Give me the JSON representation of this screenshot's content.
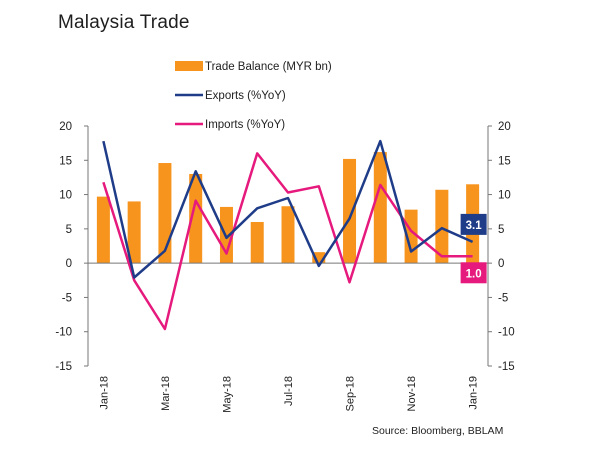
{
  "title": "Malaysia Trade",
  "source": "Source: Bloomberg, BBLAM",
  "colors": {
    "trade_balance": "#f7941d",
    "exports": "#1f3c88",
    "imports": "#e6197d"
  },
  "chart_data": {
    "type": "bar+line",
    "title": "Malaysia Trade",
    "x": [
      "Jan-18",
      "Feb-18",
      "Mar-18",
      "Apr-18",
      "May-18",
      "Jun-18",
      "Jul-18",
      "Aug-18",
      "Sep-18",
      "Oct-18",
      "Nov-18",
      "Dec-18",
      "Jan-19"
    ],
    "x_tick_labels": [
      "Jan-18",
      "",
      "Mar-18",
      "",
      "May-18",
      "",
      "Jul-18",
      "",
      "Sep-18",
      "",
      "Nov-18",
      "",
      "Jan-19"
    ],
    "y_ticks": [
      "20",
      "15",
      "10",
      "5",
      "0",
      "-5",
      "-10",
      "-15"
    ],
    "ylim": [
      -15,
      20
    ],
    "grid": false,
    "legend": "top",
    "series": [
      {
        "name": "Trade Balance (MYR bn)",
        "kind": "bar",
        "values": [
          9.7,
          9.0,
          14.6,
          13.0,
          8.2,
          6.0,
          8.3,
          1.6,
          15.2,
          16.2,
          7.8,
          10.7,
          11.5
        ]
      },
      {
        "name": "Exports (%YoY)",
        "kind": "line",
        "values": [
          17.8,
          -2.1,
          1.8,
          13.4,
          3.7,
          8.0,
          9.5,
          -0.4,
          6.5,
          17.8,
          1.7,
          5.1,
          3.1
        ]
      },
      {
        "name": "Imports (%YoY)",
        "kind": "line",
        "values": [
          11.8,
          -2.5,
          -9.6,
          9.1,
          1.4,
          16.0,
          10.3,
          11.2,
          -2.8,
          11.4,
          4.7,
          1.0,
          1.0
        ]
      }
    ],
    "end_labels": {
      "exports": "3.1",
      "imports": "1.0"
    }
  }
}
